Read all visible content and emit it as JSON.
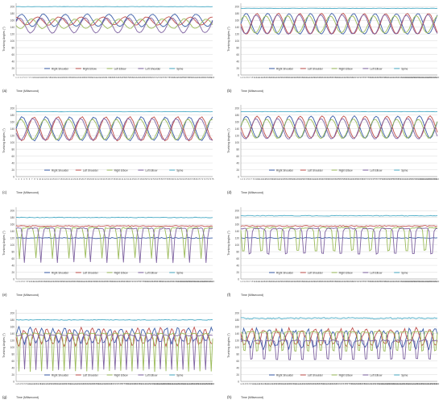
{
  "chart_data": [
    {
      "panel": "a",
      "type": "line",
      "ylabel": "Trunking Angles (°)",
      "xlabel": "Time (Milisecond)",
      "ylim": [
        0,
        210
      ],
      "yticks": [
        0,
        20,
        40,
        60,
        80,
        100,
        120,
        140,
        160,
        180,
        200
      ],
      "x_count": 100,
      "legend": [
        "Right Shoulder",
        "Right Elbow",
        "Left Elbow",
        "Left Shoulder",
        "Spine"
      ],
      "series": [
        {
          "name": "Right Shoulder",
          "color": "#3b5ea8",
          "pattern": {
            "kind": "wave",
            "mid": 160,
            "amp": 18,
            "period": 11,
            "phase": 0
          }
        },
        {
          "name": "Right Elbow",
          "color": "#c0504d",
          "pattern": {
            "kind": "wave",
            "mid": 158,
            "amp": 12,
            "period": 11,
            "phase": 3
          }
        },
        {
          "name": "Left Elbow",
          "color": "#9bbb59",
          "pattern": {
            "kind": "wave",
            "mid": 150,
            "amp": 14,
            "period": 11,
            "phase": 6
          }
        },
        {
          "name": "Left Shoulder",
          "color": "#7f63a1",
          "pattern": {
            "kind": "wave",
            "mid": 145,
            "amp": 22,
            "period": 11,
            "phase": 1
          }
        },
        {
          "name": "Spine",
          "color": "#4bacc6",
          "pattern": {
            "kind": "flat",
            "mid": 200,
            "amp": 1
          }
        }
      ]
    },
    {
      "panel": "b",
      "type": "line",
      "ylabel": "Trunking Angles (°)",
      "xlabel": "Time (Milisecond)",
      "ylim": [
        0,
        210
      ],
      "yticks": [
        0,
        20,
        40,
        60,
        80,
        100,
        120,
        140,
        160,
        180,
        200
      ],
      "x_count": 120,
      "legend": [
        "Right Shoulder",
        "Left Shoulder",
        "Right Elbow",
        "Left Elbow",
        "Spine"
      ],
      "series": [
        {
          "name": "Right Shoulder",
          "color": "#3b5ea8",
          "pattern": {
            "kind": "wave",
            "mid": 150,
            "amp": 30,
            "period": 13,
            "phase": 0
          }
        },
        {
          "name": "Left Shoulder",
          "color": "#c0504d",
          "pattern": {
            "kind": "wave",
            "mid": 150,
            "amp": 30,
            "period": 13,
            "phase": 6.5
          }
        },
        {
          "name": "Right Elbow",
          "color": "#9bbb59",
          "pattern": {
            "kind": "wave",
            "mid": 148,
            "amp": 25,
            "period": 13,
            "phase": 1
          }
        },
        {
          "name": "Left Elbow",
          "color": "#7f63a1",
          "pattern": {
            "kind": "wave",
            "mid": 148,
            "amp": 28,
            "period": 13,
            "phase": 7
          }
        },
        {
          "name": "Spine",
          "color": "#4bacc6",
          "pattern": {
            "kind": "flat",
            "mid": 195,
            "amp": 1
          }
        }
      ]
    },
    {
      "panel": "c",
      "type": "line",
      "ylabel": "Trunking Angles (°)",
      "xlabel": "Time (Milisecond)",
      "ylim": [
        0,
        210
      ],
      "yticks": [
        0,
        20,
        40,
        60,
        80,
        100,
        120,
        140,
        160,
        180,
        200
      ],
      "x_count": 75,
      "legend": [
        "Right Shoulder",
        "Left Shoulder",
        "Right Elbow",
        "Left Elbow",
        "Spine"
      ],
      "series": [
        {
          "name": "Right Shoulder",
          "color": "#3b5ea8",
          "pattern": {
            "kind": "wave",
            "mid": 140,
            "amp": 35,
            "period": 9,
            "phase": 0
          }
        },
        {
          "name": "Left Shoulder",
          "color": "#c0504d",
          "pattern": {
            "kind": "wave",
            "mid": 140,
            "amp": 35,
            "period": 9,
            "phase": 4.5
          }
        },
        {
          "name": "Right Elbow",
          "color": "#9bbb59",
          "pattern": {
            "kind": "wave",
            "mid": 138,
            "amp": 30,
            "period": 9,
            "phase": 0.5
          }
        },
        {
          "name": "Left Elbow",
          "color": "#7f63a1",
          "pattern": {
            "kind": "wave",
            "mid": 138,
            "amp": 32,
            "period": 9,
            "phase": 5
          }
        },
        {
          "name": "Spine",
          "color": "#4bacc6",
          "pattern": {
            "kind": "flat",
            "mid": 190,
            "amp": 1
          }
        }
      ]
    },
    {
      "panel": "d",
      "type": "line",
      "ylabel": "Trunking Angles (°)",
      "xlabel": "Time (Milisecond)",
      "ylim": [
        0,
        210
      ],
      "yticks": [
        0,
        20,
        40,
        60,
        80,
        100,
        120,
        140,
        160,
        180,
        200
      ],
      "x_count": 110,
      "legend": [
        "Right Shoulder",
        "Left Shoulder",
        "Right Elbow",
        "Left Elbow",
        "Spine"
      ],
      "series": [
        {
          "name": "Right Shoulder",
          "color": "#3b5ea8",
          "pattern": {
            "kind": "wave",
            "mid": 145,
            "amp": 32,
            "period": 12,
            "phase": 0
          }
        },
        {
          "name": "Left Shoulder",
          "color": "#c0504d",
          "pattern": {
            "kind": "wave",
            "mid": 145,
            "amp": 32,
            "period": 12,
            "phase": 6
          }
        },
        {
          "name": "Right Elbow",
          "color": "#9bbb59",
          "pattern": {
            "kind": "wave",
            "mid": 140,
            "amp": 28,
            "period": 12,
            "phase": 0.6
          }
        },
        {
          "name": "Left Elbow",
          "color": "#7f63a1",
          "pattern": {
            "kind": "wave",
            "mid": 140,
            "amp": 30,
            "period": 12,
            "phase": 6.6
          }
        },
        {
          "name": "Spine",
          "color": "#4bacc6",
          "pattern": {
            "kind": "flat",
            "mid": 190,
            "amp": 1
          }
        }
      ]
    },
    {
      "panel": "e",
      "type": "line",
      "ylabel": "Trunking Angles (°)",
      "xlabel": "Time (Milisecond)",
      "ylim": [
        0,
        210
      ],
      "yticks": [
        0,
        20,
        40,
        60,
        80,
        100,
        120,
        140,
        160,
        180,
        200
      ],
      "x_count": 120,
      "legend": [
        "Right Shoulder",
        "Left Shoulder",
        "Right Elbow",
        "Left Elbow",
        "Spine"
      ],
      "series": [
        {
          "name": "Right Shoulder",
          "color": "#3b5ea8",
          "pattern": {
            "kind": "flat",
            "mid": 120,
            "amp": 3
          }
        },
        {
          "name": "Left Shoulder",
          "color": "#c0504d",
          "pattern": {
            "kind": "flat",
            "mid": 155,
            "amp": 3
          }
        },
        {
          "name": "Right Elbow",
          "color": "#9bbb59",
          "pattern": {
            "kind": "dips",
            "mid": 150,
            "depth": 90,
            "period": 10,
            "phase": 3
          }
        },
        {
          "name": "Left Elbow",
          "color": "#7f63a1",
          "pattern": {
            "kind": "dips",
            "mid": 148,
            "depth": 100,
            "period": 10,
            "phase": 0
          }
        },
        {
          "name": "Spine",
          "color": "#4bacc6",
          "pattern": {
            "kind": "flat",
            "mid": 180,
            "amp": 2
          }
        }
      ]
    },
    {
      "panel": "f",
      "type": "line",
      "ylabel": "Trunking Angles (°)",
      "xlabel": "Time (Milisecond)",
      "ylim": [
        0,
        210
      ],
      "yticks": [
        0,
        20,
        40,
        60,
        80,
        100,
        120,
        140,
        160,
        180,
        200
      ],
      "x_count": 120,
      "legend": [
        "Right Shoulder",
        "Left Shoulder",
        "Right Elbow",
        "Left Elbow",
        "Spine"
      ],
      "series": [
        {
          "name": "Right Shoulder",
          "color": "#3b5ea8",
          "pattern": {
            "kind": "flat",
            "mid": 120,
            "amp": 3
          }
        },
        {
          "name": "Left Shoulder",
          "color": "#c0504d",
          "pattern": {
            "kind": "flat",
            "mid": 155,
            "amp": 3
          }
        },
        {
          "name": "Right Elbow",
          "color": "#9bbb59",
          "pattern": {
            "kind": "dips",
            "mid": 150,
            "depth": 85,
            "period": 11,
            "phase": 4
          }
        },
        {
          "name": "Left Elbow",
          "color": "#7f63a1",
          "pattern": {
            "kind": "dips",
            "mid": 148,
            "depth": 95,
            "period": 11,
            "phase": 0
          }
        },
        {
          "name": "Spine",
          "color": "#4bacc6",
          "pattern": {
            "kind": "flat",
            "mid": 185,
            "amp": 2
          }
        }
      ]
    },
    {
      "panel": "g",
      "type": "line",
      "ylabel": "Trunking Angles (°)",
      "xlabel": "Time (Milisecond)",
      "ylim": [
        0,
        210
      ],
      "yticks": [
        0,
        20,
        40,
        60,
        80,
        100,
        120,
        140,
        160,
        180,
        200
      ],
      "x_count": 140,
      "legend": [
        "Right Shoulder",
        "Left Shoulder",
        "Right Elbow",
        "Left Elbow",
        "Spine"
      ],
      "series": [
        {
          "name": "Right Shoulder",
          "color": "#3b5ea8",
          "pattern": {
            "kind": "noisy",
            "mid": 135,
            "amp": 20,
            "period": 8,
            "phase": 0
          }
        },
        {
          "name": "Left Shoulder",
          "color": "#c0504d",
          "pattern": {
            "kind": "noisy",
            "mid": 130,
            "amp": 22,
            "period": 8,
            "phase": 4
          }
        },
        {
          "name": "Right Elbow",
          "color": "#9bbb59",
          "pattern": {
            "kind": "dips",
            "mid": 140,
            "depth": 110,
            "period": 8,
            "phase": 2
          }
        },
        {
          "name": "Left Elbow",
          "color": "#7f63a1",
          "pattern": {
            "kind": "dips",
            "mid": 135,
            "depth": 100,
            "period": 8,
            "phase": 6
          }
        },
        {
          "name": "Spine",
          "color": "#4bacc6",
          "pattern": {
            "kind": "flat",
            "mid": 180,
            "amp": 2
          }
        }
      ]
    },
    {
      "panel": "h",
      "type": "line",
      "ylabel": "Trunking Angles (°)",
      "xlabel": "Time (Milisecond)",
      "ylim": [
        0,
        210
      ],
      "yticks": [
        0,
        20,
        40,
        60,
        80,
        100,
        120,
        140,
        160,
        180,
        200
      ],
      "x_count": 140,
      "legend": [
        "Right Shoulder",
        "Left Shoulder",
        "Right Elbow",
        "Left Elbow",
        "Spine"
      ],
      "series": [
        {
          "name": "Right Shoulder",
          "color": "#3b5ea8",
          "pattern": {
            "kind": "noisy",
            "mid": 125,
            "amp": 25,
            "period": 9,
            "phase": 0
          }
        },
        {
          "name": "Left Shoulder",
          "color": "#c0504d",
          "pattern": {
            "kind": "noisy",
            "mid": 130,
            "amp": 22,
            "period": 9,
            "phase": 4
          }
        },
        {
          "name": "Right Elbow",
          "color": "#9bbb59",
          "pattern": {
            "kind": "dips",
            "mid": 145,
            "depth": 80,
            "period": 9,
            "phase": 2
          }
        },
        {
          "name": "Left Elbow",
          "color": "#7f63a1",
          "pattern": {
            "kind": "dips",
            "mid": 120,
            "depth": 80,
            "period": 9,
            "phase": 6
          }
        },
        {
          "name": "Spine",
          "color": "#4bacc6",
          "pattern": {
            "kind": "flat",
            "mid": 185,
            "amp": 4
          }
        }
      ]
    }
  ]
}
